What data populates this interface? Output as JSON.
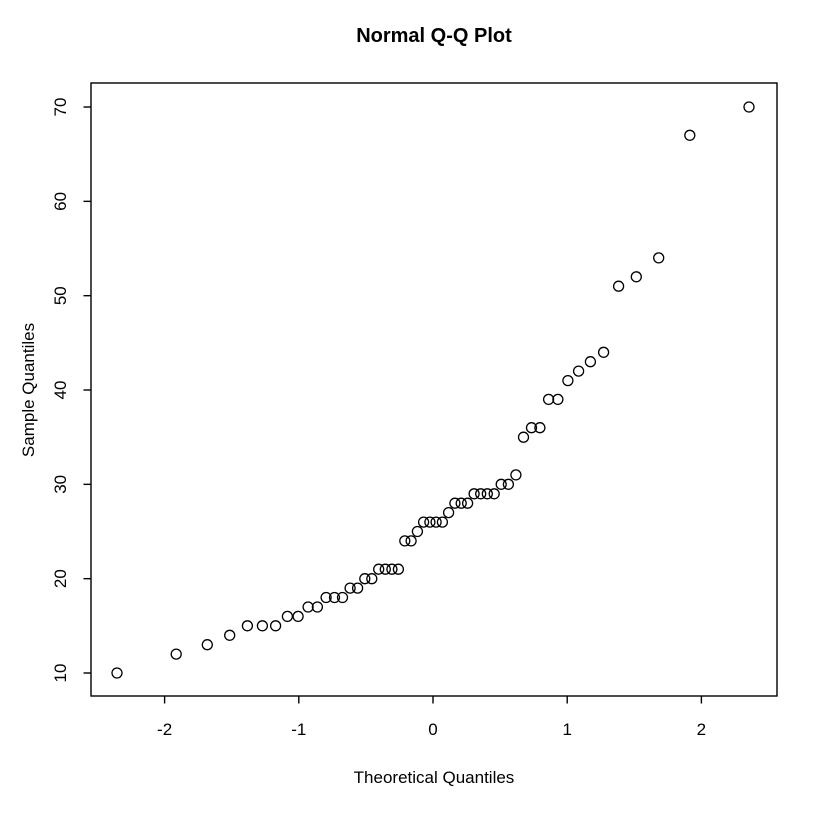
{
  "title": "Normal Q-Q Plot",
  "x_axis": {
    "label": "Theoretical Quantiles",
    "tick_labels": [
      "-2",
      "-1",
      "0",
      "1",
      "2"
    ],
    "tick_values": [
      -2,
      -1,
      0,
      1,
      2
    ]
  },
  "y_axis": {
    "label": "Sample Quantiles",
    "tick_labels": [
      "10",
      "20",
      "30",
      "40",
      "50",
      "60",
      "70"
    ],
    "tick_values": [
      10,
      20,
      30,
      40,
      50,
      60,
      70
    ]
  },
  "colors": {
    "foreground": "#000000",
    "background": "#ffffff"
  },
  "chart_data": {
    "type": "scatter",
    "title": "Normal Q-Q Plot",
    "xlabel": "Theoretical Quantiles",
    "ylabel": "Sample Quantiles",
    "marker": "open-circle",
    "marker_color": "#000000",
    "grid": false,
    "legend": "none",
    "n_points": 54,
    "xlim": [
      -2.55,
      2.55
    ],
    "ylim": [
      7.6,
      72.4
    ],
    "x": [
      -2.3549,
      -1.9139,
      -1.682,
      -1.5151,
      -1.383,
      -1.2711,
      -1.1732,
      -1.0853,
      -1.005,
      -0.9307,
      -0.8616,
      -0.7965,
      -0.734,
      -0.6745,
      -0.6174,
      -0.5621,
      -0.5083,
      -0.456,
      -0.4049,
      -0.3555,
      -0.3066,
      -0.258,
      -0.2104,
      -0.1632,
      -0.1163,
      -0.0697,
      -0.0232,
      0.0232,
      0.0697,
      0.1163,
      0.1632,
      0.2104,
      0.258,
      0.3066,
      0.3555,
      0.4049,
      0.456,
      0.5083,
      0.5621,
      0.6174,
      0.6745,
      0.734,
      0.7965,
      0.8616,
      0.9307,
      1.005,
      1.0853,
      1.1732,
      1.2711,
      1.383,
      1.5151,
      1.682,
      1.9139,
      2.3549
    ],
    "y": [
      10,
      12,
      13,
      14,
      15,
      15,
      15,
      16,
      16,
      17,
      17,
      18,
      18,
      18,
      19,
      19,
      20,
      20,
      21,
      21,
      21,
      21,
      24,
      24,
      25,
      26,
      26,
      26,
      26,
      27,
      28,
      28,
      28,
      29,
      29,
      29,
      29,
      30,
      30,
      31,
      35,
      36,
      36,
      39,
      39,
      41,
      42,
      43,
      44,
      51,
      52,
      54,
      67,
      70
    ]
  }
}
